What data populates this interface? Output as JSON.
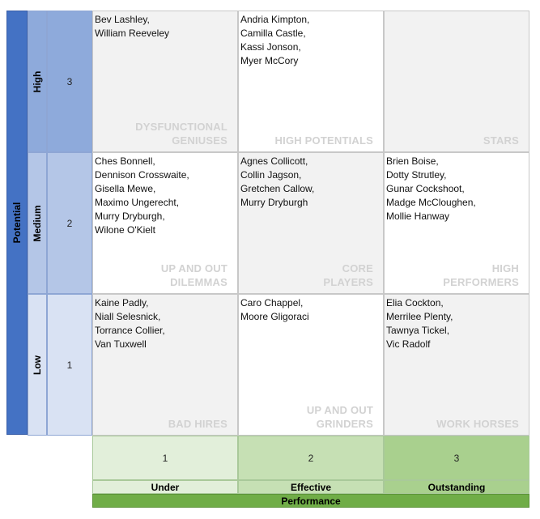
{
  "axes": {
    "potential_label": "Potential",
    "performance_label": "Performance",
    "potential_levels": [
      {
        "label": "High",
        "number": "3",
        "color": "#8eaadb"
      },
      {
        "label": "Medium",
        "number": "2",
        "color": "#b4c6e7"
      },
      {
        "label": "Low",
        "number": "1",
        "color": "#d9e2f3"
      }
    ],
    "performance_levels": [
      {
        "label": "Under",
        "number": "1",
        "color": "#e2efda"
      },
      {
        "label": "Effective",
        "number": "2",
        "color": "#c6e0b4"
      },
      {
        "label": "Outstanding",
        "number": "3",
        "color": "#a9d08e"
      }
    ],
    "potential_bar_color": "#4472c4",
    "performance_bar_color": "#70ad47"
  },
  "grid": {
    "rows": [
      {
        "cells": [
          {
            "category": [
              "DYSFUNCTIONAL",
              "GENIUSES"
            ],
            "names": [
              "Bev Lashley,",
              "William Reeveley"
            ]
          },
          {
            "category": [
              "HIGH POTENTIALS"
            ],
            "names": [
              "Andria Kimpton,",
              "Camilla Castle,",
              "Kassi Jonson,",
              "Myer McCory"
            ]
          },
          {
            "category": [
              "STARS"
            ],
            "names": []
          }
        ]
      },
      {
        "cells": [
          {
            "category": [
              "UP AND OUT",
              "DILEMMAS"
            ],
            "names": [
              "Ches Bonnell,",
              "Dennison Crosswaite,",
              "Gisella Mewe,",
              "Maximo Ungerecht,",
              "Murry Dryburgh,",
              "Wilone O'Kielt"
            ]
          },
          {
            "category": [
              "CORE",
              "PLAYERS"
            ],
            "names": [
              "Agnes Collicott,",
              "Collin Jagson,",
              "Gretchen Callow,",
              "Murry Dryburgh"
            ]
          },
          {
            "category": [
              "HIGH",
              "PERFORMERS"
            ],
            "names": [
              "Brien Boise,",
              "Dotty Strutley,",
              "Gunar Cockshoot,",
              "Madge McCloughen,",
              "Mollie Hanway"
            ]
          }
        ]
      },
      {
        "cells": [
          {
            "category": [
              "BAD HIRES"
            ],
            "names": [
              "Kaine Padly,",
              "Niall Selesnick,",
              "Torrance Collier,",
              "Van Tuxwell"
            ]
          },
          {
            "category": [
              "UP AND OUT",
              "GRINDERS"
            ],
            "names": [
              "Caro Chappel,",
              "Moore Gligoraci"
            ]
          },
          {
            "category": [
              "WORK HORSES"
            ],
            "names": [
              "Elia Cockton,",
              "Merrilee Plenty,",
              "Tawnya Tickel,",
              "Vic Radolf"
            ]
          }
        ]
      }
    ]
  }
}
